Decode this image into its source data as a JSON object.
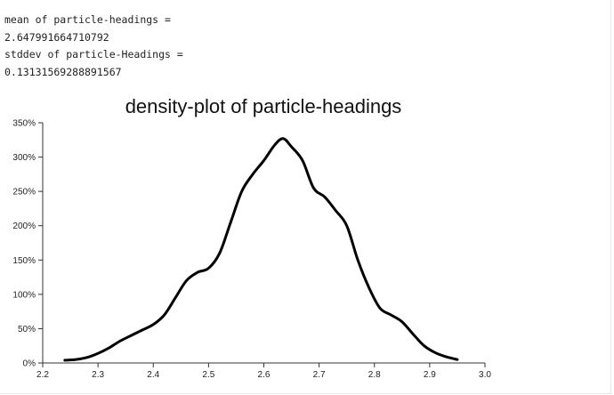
{
  "output_lines": [
    "mean of particle-headings =",
    "2.647991664710792",
    "stddev of particle-Headings =",
    "0.13131569288891567"
  ],
  "chart_data": {
    "type": "line",
    "title": "density-plot of particle-headings",
    "xlabel": "",
    "ylabel": "",
    "xlim": [
      2.2,
      3.0
    ],
    "ylim": [
      0,
      3.5
    ],
    "x_ticks": [
      2.2,
      2.3,
      2.4,
      2.5,
      2.6,
      2.7,
      2.8,
      2.9,
      3.0
    ],
    "x_tick_labels": [
      "2.2",
      "2.3",
      "2.4",
      "2.5",
      "2.6",
      "2.7",
      "2.8",
      "2.9",
      "3.0"
    ],
    "y_ticks": [
      0,
      0.5,
      1.0,
      1.5,
      2.0,
      2.5,
      3.0,
      3.5
    ],
    "y_tick_labels": [
      "0%",
      "50%",
      "100%",
      "150%",
      "200%",
      "250%",
      "300%",
      "350%"
    ],
    "grid": false,
    "series": [
      {
        "color": "#000000",
        "x": [
          2.24,
          2.26,
          2.28,
          2.3,
          2.32,
          2.34,
          2.36,
          2.38,
          2.4,
          2.42,
          2.44,
          2.46,
          2.48,
          2.5,
          2.52,
          2.54,
          2.56,
          2.58,
          2.6,
          2.62,
          2.635,
          2.65,
          2.67,
          2.69,
          2.71,
          2.73,
          2.75,
          2.77,
          2.79,
          2.81,
          2.83,
          2.85,
          2.87,
          2.89,
          2.91,
          2.93,
          2.95
        ],
        "y": [
          0.04,
          0.05,
          0.08,
          0.14,
          0.22,
          0.32,
          0.4,
          0.48,
          0.56,
          0.7,
          0.95,
          1.2,
          1.32,
          1.38,
          1.6,
          2.05,
          2.5,
          2.75,
          2.95,
          3.18,
          3.27,
          3.15,
          2.95,
          2.55,
          2.42,
          2.22,
          2.0,
          1.5,
          1.1,
          0.8,
          0.7,
          0.6,
          0.42,
          0.25,
          0.15,
          0.09,
          0.05
        ]
      }
    ]
  }
}
